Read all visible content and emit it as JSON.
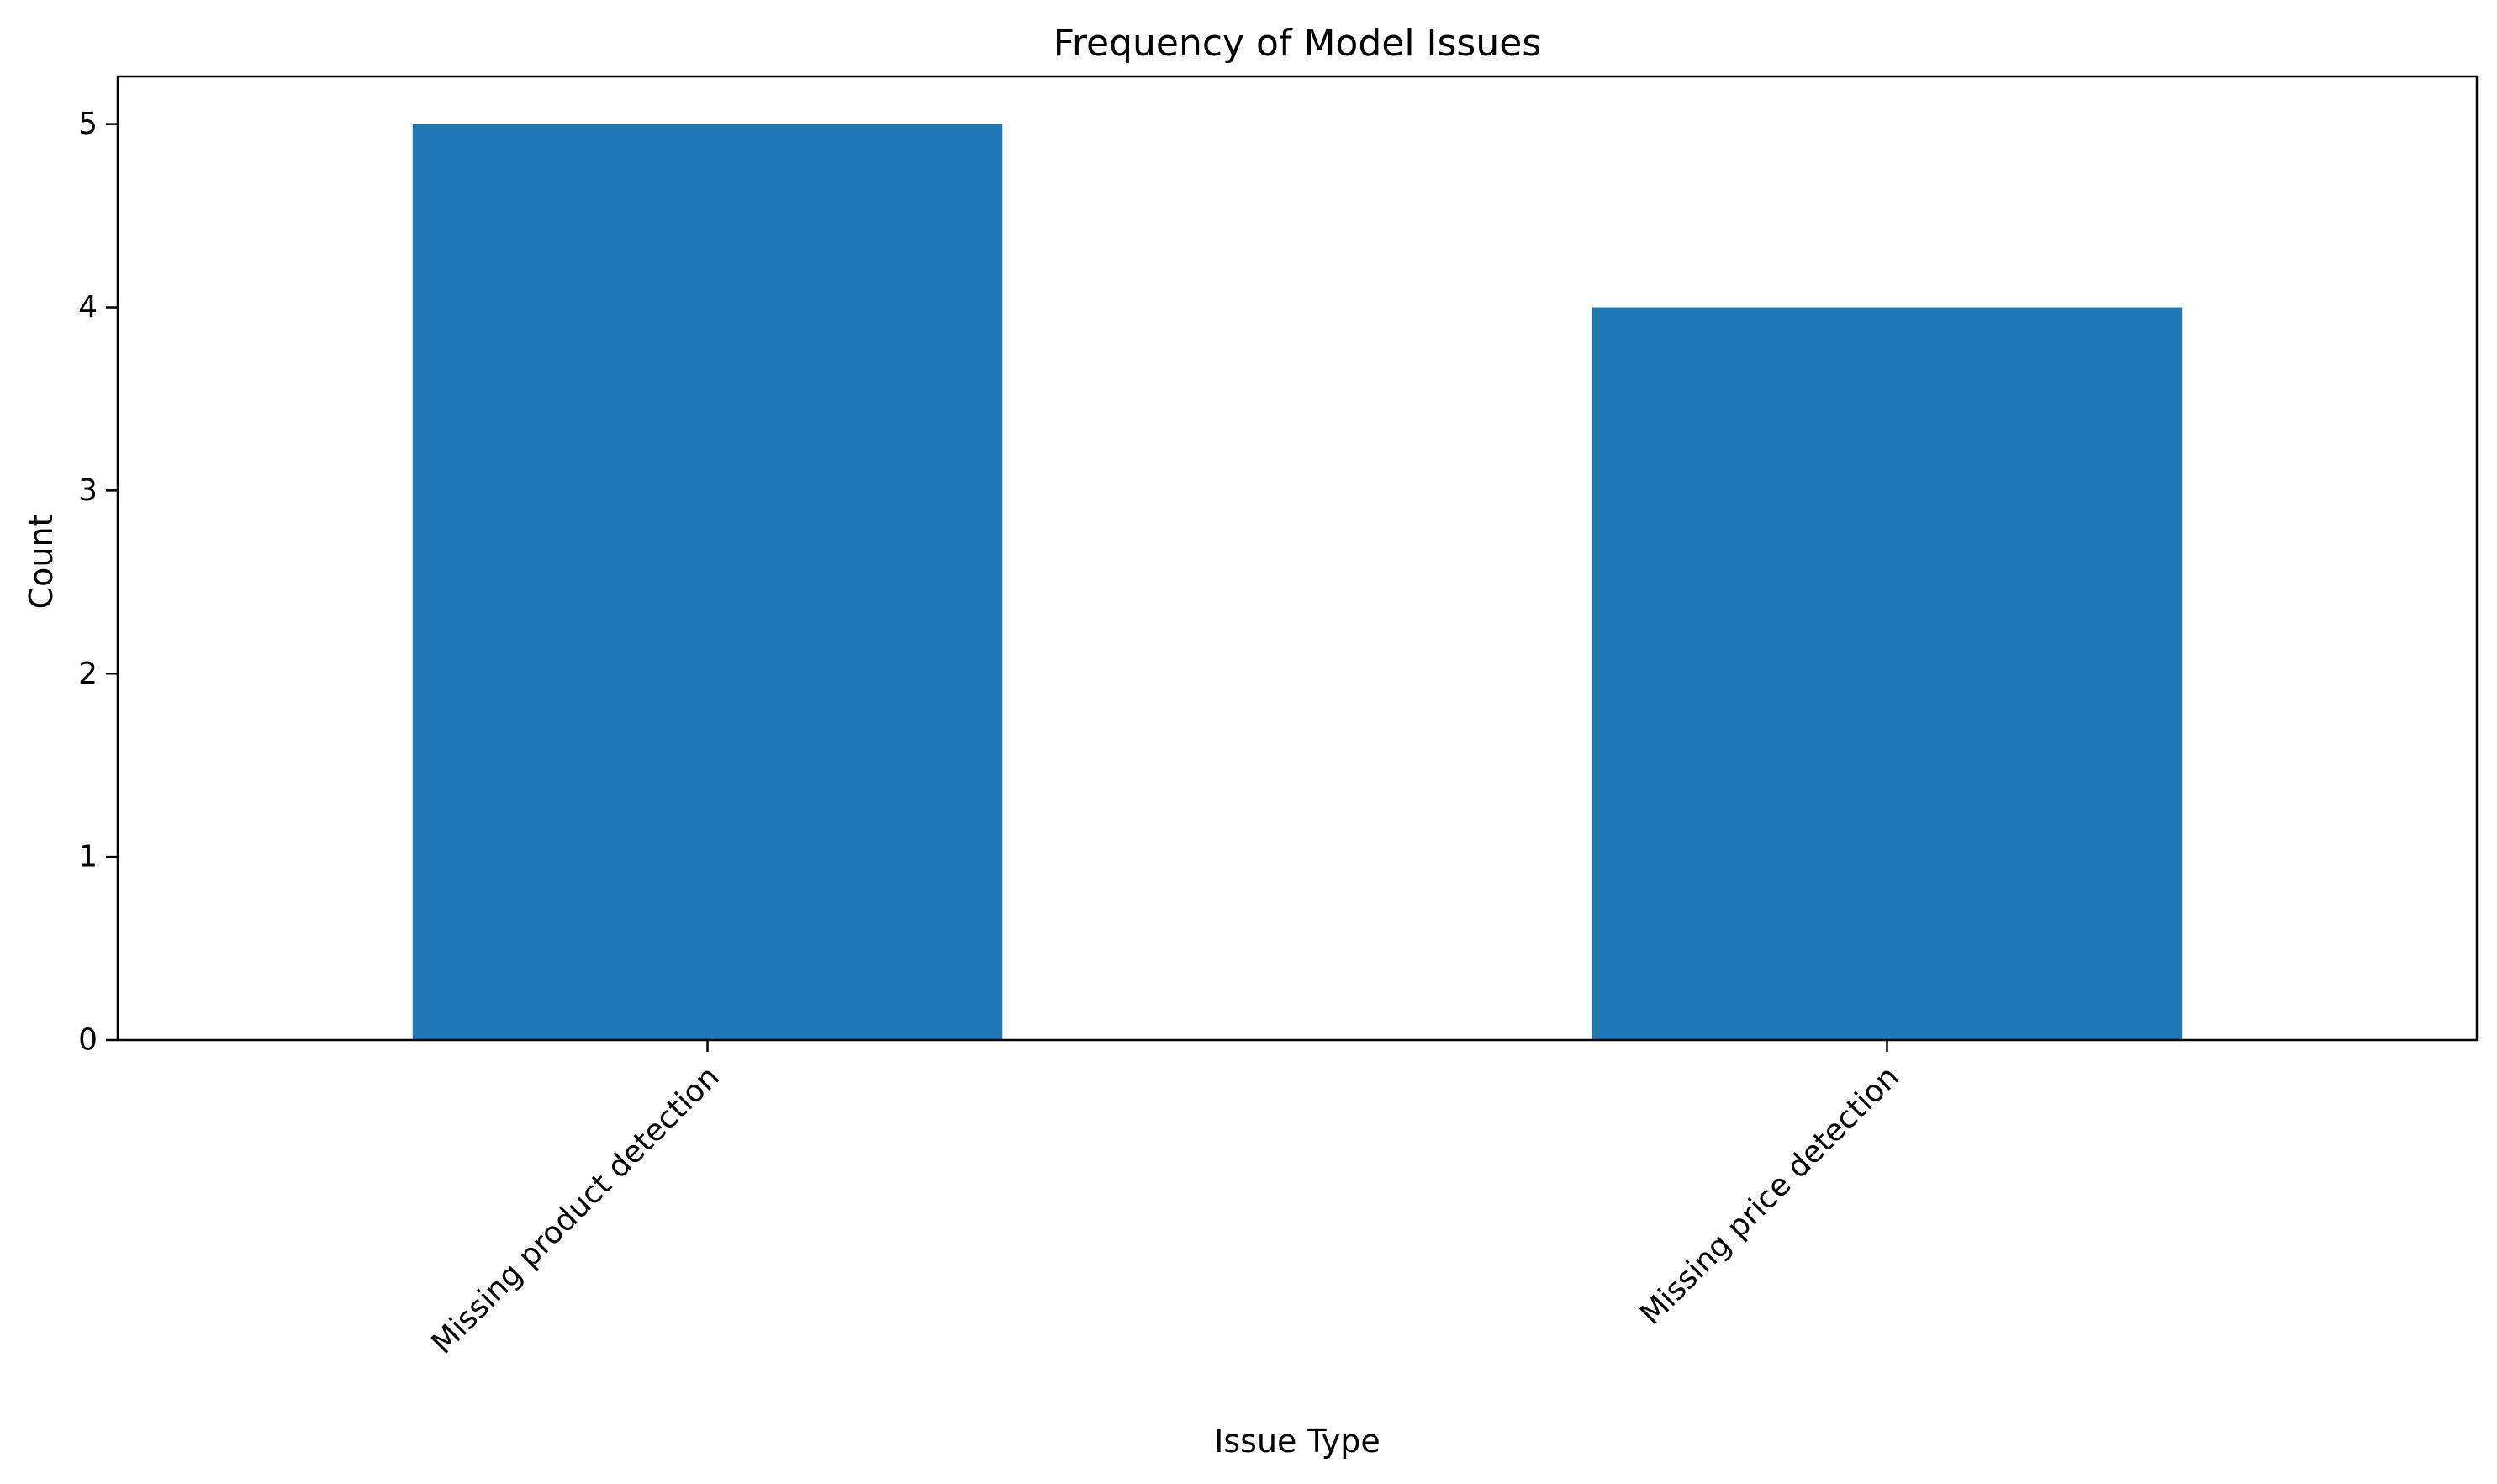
{
  "chart_data": {
    "type": "bar",
    "title": "Frequency of Model Issues",
    "xlabel": "Issue Type",
    "ylabel": "Count",
    "categories": [
      "Missing product detection",
      "Missing price detection"
    ],
    "values": [
      5,
      4
    ],
    "ylim": [
      0,
      5.26
    ],
    "yticks": [
      0,
      1,
      2,
      3,
      4,
      5
    ],
    "bar_color": "#1f77b4",
    "grid": false,
    "legend": "none"
  }
}
